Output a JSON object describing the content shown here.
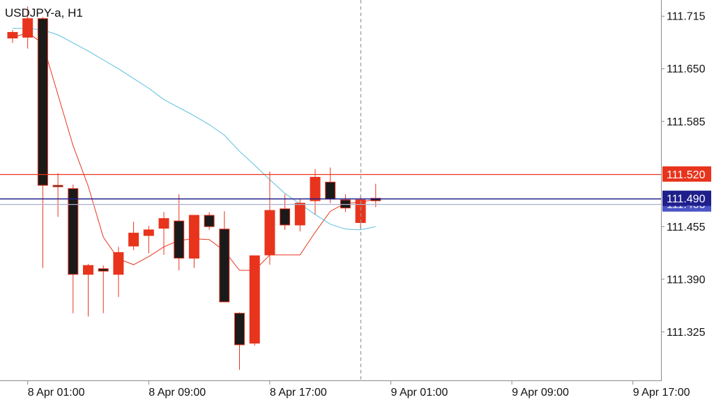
{
  "chart_data": {
    "type": "candlestick",
    "title": "USDJPY-a, H1",
    "x_tick_labels": [
      "8 Apr 01:00",
      "8 Apr 09:00",
      "8 Apr 17:00",
      "9 Apr 01:00",
      "9 Apr 09:00",
      "9 Apr 17:00"
    ],
    "y_tick_labels": [
      "111.715",
      "111.650",
      "111.585",
      "111.455",
      "111.390",
      "111.325"
    ],
    "ylim": [
      111.265,
      111.735
    ],
    "timeframe_hours": 1,
    "first_bar_time": "8 Apr 00:00",
    "candles": [
      {
        "open": 111.688,
        "high": 111.698,
        "low": 111.682,
        "close": 111.695
      },
      {
        "open": 111.689,
        "high": 111.727,
        "low": 111.675,
        "close": 111.712
      },
      {
        "open": 111.712,
        "high": 111.714,
        "low": 111.404,
        "close": 111.506
      },
      {
        "open": 111.506,
        "high": 111.521,
        "low": 111.467,
        "close": 111.505
      },
      {
        "open": 111.502,
        "high": 111.507,
        "low": 111.348,
        "close": 111.396
      },
      {
        "open": 111.396,
        "high": 111.409,
        "low": 111.344,
        "close": 111.407
      },
      {
        "open": 111.403,
        "high": 111.407,
        "low": 111.348,
        "close": 111.4
      },
      {
        "open": 111.396,
        "high": 111.43,
        "low": 111.368,
        "close": 111.423
      },
      {
        "open": 111.431,
        "high": 111.461,
        "low": 111.426,
        "close": 111.447
      },
      {
        "open": 111.444,
        "high": 111.456,
        "low": 111.422,
        "close": 111.451
      },
      {
        "open": 111.453,
        "high": 111.473,
        "low": 111.42,
        "close": 111.465
      },
      {
        "open": 111.462,
        "high": 111.495,
        "low": 111.401,
        "close": 111.416
      },
      {
        "open": 111.416,
        "high": 111.465,
        "low": 111.404,
        "close": 111.469
      },
      {
        "open": 111.469,
        "high": 111.473,
        "low": 111.451,
        "close": 111.455
      },
      {
        "open": 111.452,
        "high": 111.474,
        "low": 111.364,
        "close": 111.362
      },
      {
        "open": 111.348,
        "high": 111.349,
        "low": 111.278,
        "close": 111.309
      },
      {
        "open": 111.311,
        "high": 111.419,
        "low": 111.308,
        "close": 111.419
      },
      {
        "open": 111.42,
        "high": 111.523,
        "low": 111.408,
        "close": 111.475
      },
      {
        "open": 111.477,
        "high": 111.495,
        "low": 111.451,
        "close": 111.457
      },
      {
        "open": 111.457,
        "high": 111.49,
        "low": 111.449,
        "close": 111.484
      },
      {
        "open": 111.487,
        "high": 111.526,
        "low": 111.47,
        "close": 111.516
      },
      {
        "open": 111.51,
        "high": 111.528,
        "low": 111.484,
        "close": 111.489
      },
      {
        "open": 111.488,
        "high": 111.495,
        "low": 111.473,
        "close": 111.478
      },
      {
        "open": 111.46,
        "high": 111.493,
        "low": 111.452,
        "close": 111.488
      },
      {
        "open": 111.49,
        "high": 111.508,
        "low": 111.479,
        "close": 111.487
      }
    ],
    "series": [
      {
        "name": "",
        "color": "#e8341c",
        "values": [
          111.688,
          111.695,
          111.681,
          111.618,
          111.555,
          111.505,
          111.442,
          111.415,
          111.408,
          111.418,
          111.43,
          111.438,
          111.44,
          111.439,
          111.425,
          111.401,
          111.401,
          111.42,
          111.42,
          111.42,
          111.448,
          111.474,
          111.484,
          111.485,
          111.489
        ]
      },
      {
        "name": "",
        "color": "#5bbfe0",
        "values": [
          111.7,
          111.7,
          111.698,
          111.692,
          111.682,
          111.672,
          111.661,
          111.65,
          111.638,
          111.626,
          111.612,
          111.602,
          111.592,
          111.581,
          111.568,
          111.548,
          111.531,
          111.513,
          111.496,
          111.483,
          111.47,
          111.458,
          111.452,
          111.451,
          111.455
        ]
      }
    ],
    "horizontal_lines": [
      {
        "value": 111.52,
        "label": "111.520",
        "color": "#e8341c"
      },
      {
        "value": 111.49,
        "label": "111.490",
        "color": "#1f1f8c"
      },
      {
        "value": 111.483,
        "label": "111.483",
        "color": "#a8b0cc"
      }
    ],
    "vertical_line_bar_index": 23,
    "colors": {
      "bull_body": "#e8341c",
      "bear_body": "#1a1a1a",
      "wick": "#e8341c",
      "axis": "#8a8a8a",
      "vline": "#999999"
    }
  }
}
